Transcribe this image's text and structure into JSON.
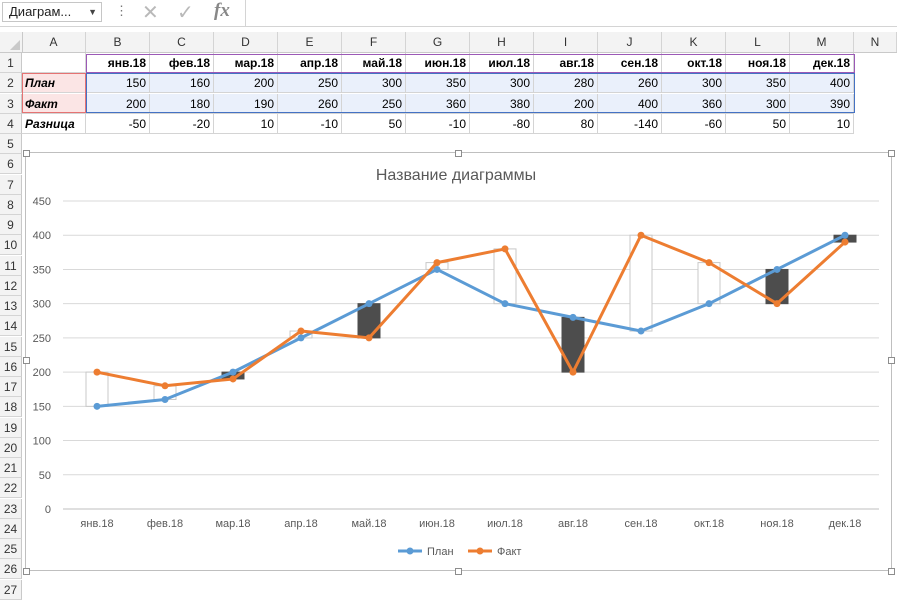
{
  "name_box": "Диаграм...",
  "formula_bar_fx": "fx",
  "columns": [
    "A",
    "B",
    "C",
    "D",
    "E",
    "F",
    "G",
    "H",
    "I",
    "J",
    "K",
    "L",
    "M",
    "N"
  ],
  "rows": [
    "1",
    "2",
    "3",
    "4",
    "5",
    "6",
    "7",
    "8",
    "9",
    "10",
    "11",
    "12",
    "13",
    "14",
    "15",
    "16",
    "17",
    "18",
    "19",
    "20",
    "21",
    "22",
    "23",
    "24",
    "25",
    "26",
    "27"
  ],
  "table": {
    "months": [
      "янв.18",
      "фев.18",
      "мар.18",
      "апр.18",
      "май.18",
      "июн.18",
      "июл.18",
      "авг.18",
      "сен.18",
      "окт.18",
      "ноя.18",
      "дек.18"
    ],
    "plan_label": "План",
    "fact_label": "Факт",
    "diff_label": "Разница",
    "plan": [
      150,
      160,
      200,
      250,
      300,
      350,
      300,
      280,
      260,
      300,
      350,
      400
    ],
    "fact": [
      200,
      180,
      190,
      260,
      250,
      360,
      380,
      200,
      400,
      360,
      300,
      390
    ],
    "diff": [
      -50,
      -20,
      10,
      -10,
      50,
      -10,
      -80,
      80,
      -140,
      -60,
      50,
      10
    ]
  },
  "colors": {
    "plan": "#5b9bd5",
    "fact": "#ed7d31",
    "up_bar": "#ffffff",
    "down_bar": "#4d4d4d",
    "selection": "#4472c4"
  },
  "chart_data": {
    "type": "line",
    "title": "Название диаграммы",
    "categories": [
      "янв.18",
      "фев.18",
      "мар.18",
      "апр.18",
      "май.18",
      "июн.18",
      "июл.18",
      "авг.18",
      "сен.18",
      "окт.18",
      "ноя.18",
      "дек.18"
    ],
    "series": [
      {
        "name": "План",
        "values": [
          150,
          160,
          200,
          250,
          300,
          350,
          300,
          280,
          260,
          300,
          350,
          400
        ]
      },
      {
        "name": "Факт",
        "values": [
          200,
          180,
          190,
          260,
          250,
          360,
          380,
          200,
          400,
          360,
          300,
          390
        ]
      }
    ],
    "up_down_bars": true,
    "ylim": [
      0,
      450
    ],
    "yticks": [
      0,
      50,
      100,
      150,
      200,
      250,
      300,
      350,
      400,
      450
    ],
    "grid": true,
    "legend": "bottom"
  }
}
